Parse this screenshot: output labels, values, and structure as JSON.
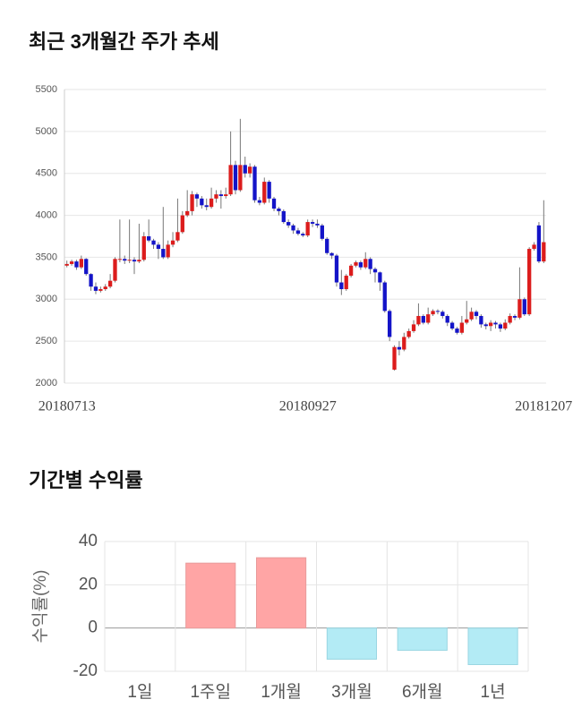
{
  "chart_data": [
    {
      "type": "candlestick",
      "title": "최근 3개월간 주가 추세",
      "categories": [
        "20180713",
        null,
        null,
        null,
        null,
        null,
        null,
        null,
        null,
        null,
        null,
        null,
        null,
        null,
        null,
        null,
        null,
        null,
        null,
        null,
        null,
        null,
        null,
        null,
        null,
        null,
        null,
        null,
        null,
        null,
        null,
        null,
        null,
        null,
        null,
        null,
        null,
        null,
        null,
        null,
        null,
        null,
        null,
        null,
        null,
        null,
        null,
        null,
        null,
        null,
        "20180927",
        null,
        null,
        null,
        null,
        null,
        null,
        null,
        null,
        null,
        null,
        null,
        null,
        null,
        null,
        null,
        null,
        null,
        null,
        null,
        null,
        null,
        null,
        null,
        null,
        null,
        null,
        null,
        null,
        null,
        null,
        null,
        null,
        null,
        null,
        null,
        null,
        null,
        null,
        null,
        null,
        null,
        null,
        null,
        null,
        null,
        null,
        null,
        null,
        "20181207"
      ],
      "open": [
        3400,
        3420,
        3450,
        3380,
        3480,
        3300,
        3150,
        3100,
        3120,
        3150,
        3220,
        3480,
        3480,
        3460,
        3470,
        3450,
        3470,
        3750,
        3700,
        3650,
        3600,
        3500,
        3650,
        3700,
        3800,
        4000,
        4050,
        4250,
        4200,
        4120,
        4100,
        4200,
        4250,
        4230,
        4250,
        4600,
        4300,
        4600,
        4500,
        4580,
        4180,
        4150,
        4400,
        4200,
        4080,
        4050,
        3920,
        3880,
        3820,
        3780,
        3760,
        3920,
        3900,
        3880,
        3720,
        3550,
        3520,
        3200,
        3120,
        3280,
        3400,
        3440,
        3380,
        3480,
        3360,
        3320,
        3200,
        2860,
        2160,
        2430,
        2400,
        2550,
        2620,
        2700,
        2800,
        2720,
        2820,
        2860,
        2850,
        2800,
        2720,
        2650,
        2600,
        2720,
        2760,
        2850,
        2800,
        2700,
        2680,
        2720,
        2700,
        2650,
        2720,
        2800,
        2780,
        3000,
        2820,
        3600,
        3880,
        3450
      ],
      "high": [
        3460,
        3470,
        3470,
        3520,
        3490,
        3310,
        3200,
        3150,
        3180,
        3300,
        3500,
        3950,
        3520,
        3950,
        3500,
        3900,
        3800,
        3950,
        3720,
        3680,
        4100,
        3700,
        3800,
        4200,
        4050,
        4300,
        4290,
        4270,
        4230,
        4200,
        4330,
        4300,
        4300,
        4330,
        5000,
        4650,
        5150,
        4700,
        4620,
        4600,
        4220,
        4450,
        4420,
        4220,
        4100,
        4070,
        3950,
        3900,
        3850,
        3800,
        3950,
        3950,
        3950,
        3900,
        3740,
        3560,
        3540,
        3350,
        3300,
        3420,
        3460,
        3460,
        3560,
        3500,
        3380,
        3330,
        3220,
        2880,
        2450,
        2500,
        2600,
        2650,
        2750,
        2950,
        2820,
        2900,
        2880,
        2880,
        2870,
        2820,
        2740,
        2670,
        2800,
        2980,
        2900,
        2870,
        2820,
        2720,
        2750,
        2740,
        2720,
        2760,
        2830,
        2820,
        3380,
        3020,
        3620,
        3680,
        3920,
        4180
      ],
      "low": [
        3380,
        3400,
        3350,
        3360,
        3280,
        3100,
        3060,
        3080,
        3100,
        3130,
        3200,
        3440,
        3420,
        3430,
        3300,
        3430,
        3450,
        3680,
        3600,
        3480,
        3480,
        3480,
        3620,
        3680,
        3780,
        3980,
        4000,
        4100,
        4080,
        4060,
        4080,
        4150,
        4080,
        4200,
        4230,
        4250,
        4280,
        4450,
        4450,
        4150,
        4120,
        4130,
        4150,
        4050,
        4000,
        3900,
        3850,
        3780,
        3760,
        3740,
        3740,
        3860,
        3850,
        3700,
        3530,
        3480,
        3150,
        3050,
        3100,
        3260,
        3380,
        3350,
        3360,
        3300,
        3200,
        3100,
        2840,
        2500,
        2150,
        2330,
        2380,
        2530,
        2600,
        2680,
        2700,
        2700,
        2800,
        2820,
        2770,
        2680,
        2630,
        2580,
        2580,
        2700,
        2740,
        2760,
        2660,
        2640,
        2620,
        2650,
        2610,
        2630,
        2700,
        2750,
        2760,
        2800,
        2800,
        3580,
        3430,
        3430
      ],
      "close": [
        3420,
        3450,
        3380,
        3480,
        3300,
        3150,
        3100,
        3120,
        3150,
        3220,
        3480,
        3480,
        3460,
        3470,
        3450,
        3470,
        3750,
        3700,
        3650,
        3600,
        3500,
        3650,
        3700,
        3800,
        4000,
        4050,
        4250,
        4200,
        4120,
        4100,
        4200,
        4250,
        4230,
        4250,
        4600,
        4300,
        4600,
        4500,
        4580,
        4180,
        4150,
        4400,
        4200,
        4080,
        4050,
        3920,
        3880,
        3820,
        3780,
        3760,
        3920,
        3900,
        3880,
        3720,
        3550,
        3520,
        3200,
        3120,
        3280,
        3400,
        3440,
        3380,
        3480,
        3360,
        3320,
        3200,
        2860,
        2550,
        2430,
        2400,
        2550,
        2620,
        2700,
        2800,
        2720,
        2820,
        2860,
        2850,
        2800,
        2720,
        2650,
        2600,
        2720,
        2760,
        2850,
        2800,
        2700,
        2680,
        2720,
        2700,
        2650,
        2720,
        2800,
        2780,
        3000,
        2820,
        3600,
        3650,
        3450,
        3680
      ],
      "up_color": "#dc1c1c",
      "down_color": "#1414c8",
      "ylim": [
        2000,
        5500
      ],
      "yticks": [
        2000,
        2500,
        3000,
        3500,
        4000,
        4500,
        5000,
        5500
      ],
      "grid": true
    },
    {
      "type": "bar",
      "title": "기간별 수익률",
      "ylabel": "수익률(%)",
      "categories": [
        "1일",
        "1주일",
        "1개월",
        "3개월",
        "6개월",
        "1년"
      ],
      "values": [
        0,
        30,
        32.5,
        -14.4,
        -10.3,
        -16.9
      ],
      "positive_color": "#ffa5a5",
      "negative_color": "#b3ebf5",
      "ylim": [
        -20,
        40
      ],
      "yticks": [
        -20,
        0,
        20,
        40
      ],
      "grid": true
    }
  ]
}
